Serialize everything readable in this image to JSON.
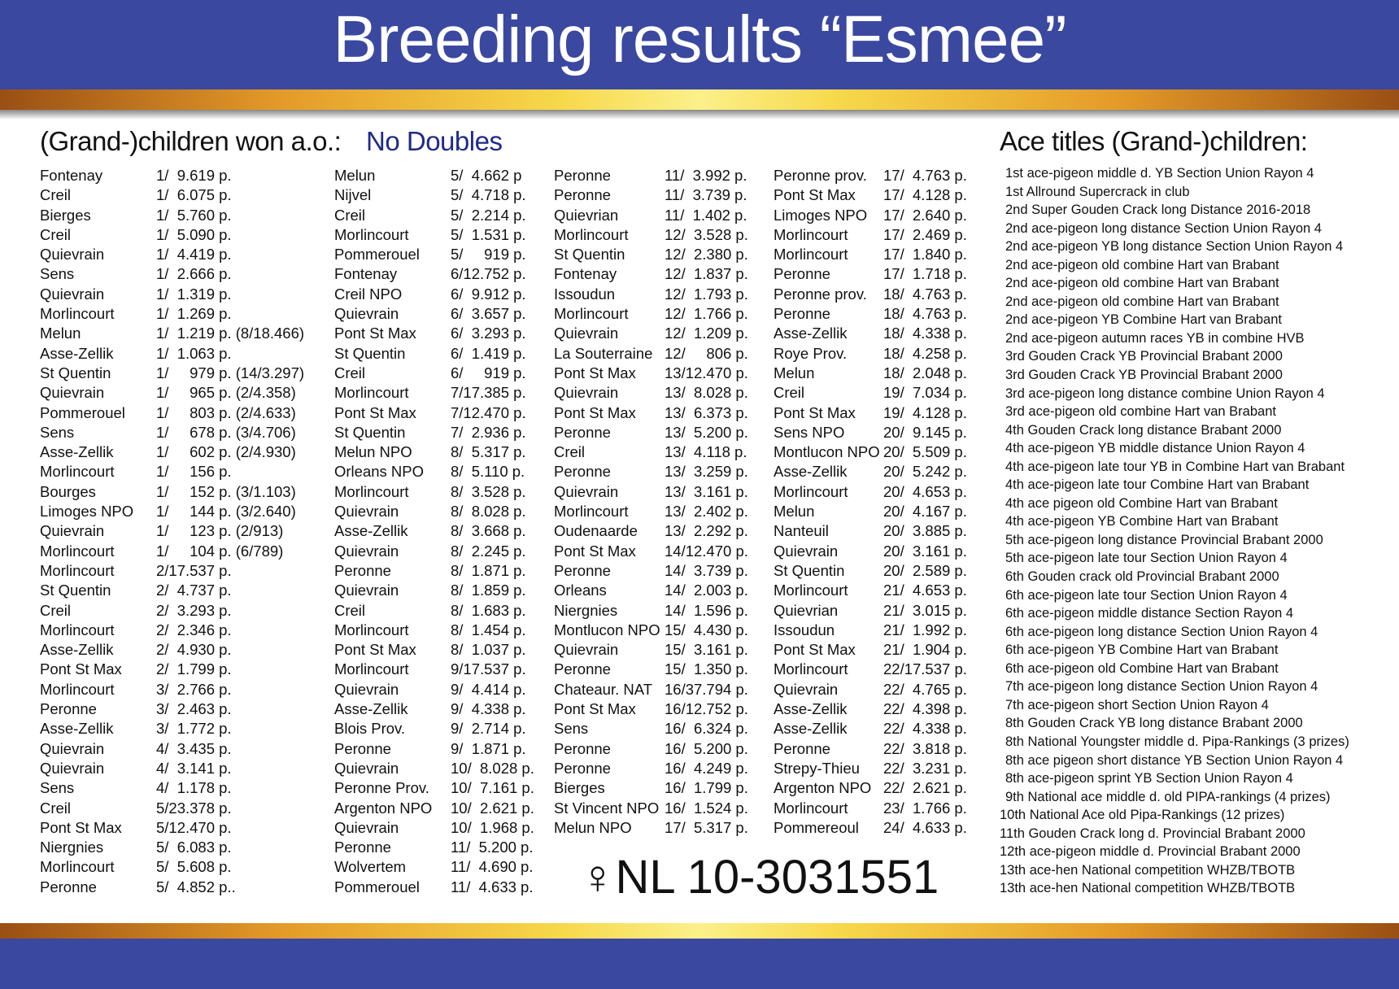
{
  "title": "Breeding results “Esmee”",
  "left_heading": "(Grand-)children won a.o.:",
  "no_doubles": "No Doubles",
  "right_heading": "Ace titles (Grand-)children:",
  "pigeon_id": "♀NL 10-3031551",
  "colors": {
    "blue": "#3a48a0",
    "gold": "#f7d84a",
    "accent_text": "#1f2a8a"
  },
  "results": [
    [
      [
        "Fontenay",
        "1/  9.619 p."
      ],
      [
        "Creil",
        "1/  6.075 p."
      ],
      [
        "Bierges",
        "1/  5.760 p."
      ],
      [
        "Creil",
        "1/  5.090 p."
      ],
      [
        "Quievrain",
        "1/  4.419 p."
      ],
      [
        "Sens",
        "1/  2.666 p."
      ],
      [
        "Quievrain",
        "1/  1.319 p."
      ],
      [
        "Morlincourt",
        "1/  1.269 p."
      ],
      [
        "Melun",
        "1/  1.219 p. (8/18.466)"
      ],
      [
        "Asse-Zellik",
        "1/  1.063 p."
      ],
      [
        "St Quentin",
        "1/     979 p. (14/3.297)"
      ],
      [
        "Quievrain",
        "1/     965 p. (2/4.358)"
      ],
      [
        "Pommerouel",
        "1/     803 p. (2/4.633)"
      ],
      [
        "Sens",
        "1/     678 p. (3/4.706)"
      ],
      [
        "Asse-Zellik",
        "1/     602 p. (2/4.930)"
      ],
      [
        "Morlincourt",
        "1/     156 p."
      ],
      [
        "Bourges",
        "1/     152 p. (3/1.103)"
      ],
      [
        "Limoges NPO",
        "1/     144 p. (3/2.640)"
      ],
      [
        "Quievrain",
        "1/     123 p. (2/913)"
      ],
      [
        "Morlincourt",
        "1/     104 p. (6/789)"
      ],
      [
        "Morlincourt",
        "2/17.537 p."
      ],
      [
        "St Quentin",
        "2/  4.737 p."
      ],
      [
        "Creil",
        "2/  3.293 p."
      ],
      [
        "Morlincourt",
        "2/  2.346 p."
      ],
      [
        "Asse-Zellik",
        "2/  4.930 p."
      ],
      [
        "Pont St Max",
        "2/  1.799 p."
      ],
      [
        "Morlincourt",
        "3/  2.766 p."
      ],
      [
        "Peronne",
        "3/  2.463 p."
      ],
      [
        "Asse-Zellik",
        "3/  1.772 p."
      ],
      [
        "Quievrain",
        "4/  3.435 p."
      ],
      [
        "Quievrain",
        "4/  3.141 p."
      ],
      [
        "Sens",
        "4/  1.178 p."
      ],
      [
        "Creil",
        "5/23.378 p."
      ],
      [
        "Pont St Max",
        "5/12.470 p."
      ],
      [
        "Niergnies",
        "5/  6.083 p."
      ],
      [
        "Morlincourt",
        "5/  5.608 p."
      ],
      [
        "Peronne",
        "5/  4.852 p.."
      ]
    ],
    [
      [
        "Melun",
        "5/  4.662 p"
      ],
      [
        "Nijvel",
        "5/  4.718 p."
      ],
      [
        "Creil",
        "5/  2.214 p."
      ],
      [
        "Morlincourt",
        "5/  1.531 p."
      ],
      [
        "Pommerouel",
        "5/     919 p."
      ],
      [
        "Fontenay",
        "6/12.752 p."
      ],
      [
        "Creil NPO",
        "6/  9.912 p."
      ],
      [
        "Quievrain",
        "6/  3.657 p."
      ],
      [
        "Pont St Max",
        "6/  3.293 p."
      ],
      [
        "St Quentin",
        "6/  1.419 p."
      ],
      [
        "Creil",
        "6/     919 p."
      ],
      [
        "Morlincourt",
        "7/17.385 p."
      ],
      [
        "Pont St Max",
        "7/12.470 p."
      ],
      [
        "St Quentin",
        "7/  2.936 p."
      ],
      [
        "Melun NPO",
        "8/  5.317 p."
      ],
      [
        "Orleans NPO",
        "8/  5.110 p."
      ],
      [
        "Morlincourt",
        "8/  3.528 p."
      ],
      [
        "Quievrain",
        "8/  8.028 p."
      ],
      [
        "Asse-Zellik",
        "8/  3.668 p."
      ],
      [
        "Quievrain",
        "8/  2.245 p."
      ],
      [
        "Peronne",
        "8/  1.871 p."
      ],
      [
        "Quievrain",
        "8/  1.859 p."
      ],
      [
        "Creil",
        "8/  1.683 p."
      ],
      [
        "Morlincourt",
        "8/  1.454 p."
      ],
      [
        "Pont St Max",
        "8/  1.037 p."
      ],
      [
        "Morlincourt",
        "9/17.537 p."
      ],
      [
        "Quievrain",
        "9/  4.414 p."
      ],
      [
        "Asse-Zellik",
        "9/  4.338 p."
      ],
      [
        "Blois Prov.",
        "9/  2.714 p."
      ],
      [
        "Peronne",
        "9/  1.871 p."
      ],
      [
        "Quievrain",
        "10/  8.028 p."
      ],
      [
        "Peronne Prov.",
        "10/  7.161 p."
      ],
      [
        "Argenton NPO",
        "10/  2.621 p."
      ],
      [
        "Quievrain",
        "10/  1.968 p."
      ],
      [
        "Peronne",
        "11/  5.200 p."
      ],
      [
        "Wolvertem",
        "11/  4.690 p."
      ],
      [
        "Pommerouel",
        "11/  4.633 p."
      ]
    ],
    [
      [
        "Peronne",
        "11/  3.992 p."
      ],
      [
        "Peronne",
        "11/  3.739 p."
      ],
      [
        "Quievrian",
        "11/  1.402 p."
      ],
      [
        "Morlincourt",
        "12/  3.528 p."
      ],
      [
        "St Quentin",
        "12/  2.380 p."
      ],
      [
        "Fontenay",
        "12/  1.837 p."
      ],
      [
        "Issoudun",
        "12/  1.793 p."
      ],
      [
        "Morlincourt",
        "12/  1.766 p."
      ],
      [
        "Quievrain",
        "12/  1.209 p."
      ],
      [
        "La Souterraine",
        "12/     806 p."
      ],
      [
        "Pont St Max",
        "13/12.470 p."
      ],
      [
        "Quievrain",
        "13/  8.028 p."
      ],
      [
        "Pont St Max",
        "13/  6.373 p."
      ],
      [
        "Peronne",
        "13/  5.200 p."
      ],
      [
        "Creil",
        "13/  4.118 p."
      ],
      [
        "Peronne",
        "13/  3.259 p."
      ],
      [
        "Quievrain",
        "13/  3.161 p."
      ],
      [
        "Morlincourt",
        "13/  2.402 p."
      ],
      [
        "Oudenaarde",
        "13/  2.292 p."
      ],
      [
        "Pont St Max",
        "14/12.470 p."
      ],
      [
        "Peronne",
        "14/  3.739 p."
      ],
      [
        "Orleans",
        "14/  2.003 p."
      ],
      [
        "Niergnies",
        "14/  1.596 p."
      ],
      [
        "Montlucon NPO",
        "15/  4.430 p."
      ],
      [
        "Quievrain",
        "15/  3.161 p."
      ],
      [
        "Peronne",
        "15/  1.350 p."
      ],
      [
        "Chateaur. NAT",
        "16/37.794 p."
      ],
      [
        "Pont St Max",
        "16/12.752 p."
      ],
      [
        "Sens",
        "16/  6.324 p."
      ],
      [
        "Peronne",
        "16/  5.200 p."
      ],
      [
        "Peronne",
        "16/  4.249 p."
      ],
      [
        "Bierges",
        "16/  1.799 p."
      ],
      [
        "St Vincent NPO",
        "16/  1.524 p."
      ],
      [
        "Melun NPO",
        "17/  5.317 p."
      ]
    ],
    [
      [
        "Peronne prov.",
        "17/  4.763 p."
      ],
      [
        "Pont St Max",
        "17/  4.128 p."
      ],
      [
        "Limoges NPO",
        "17/  2.640 p."
      ],
      [
        "Morlincourt",
        "17/  2.469 p."
      ],
      [
        "Morlincourt",
        "17/  1.840 p."
      ],
      [
        "Peronne",
        "17/  1.718 p."
      ],
      [
        "Peronne prov.",
        "18/  4.763 p."
      ],
      [
        "Peronne",
        "18/  4.763 p."
      ],
      [
        "Asse-Zellik",
        "18/  4.338 p."
      ],
      [
        "Roye Prov.",
        "18/  4.258 p."
      ],
      [
        "Melun",
        "18/  2.048 p."
      ],
      [
        "Creil",
        "19/  7.034 p."
      ],
      [
        "Pont St Max",
        "19/  4.128 p."
      ],
      [
        "Sens NPO",
        "20/  9.145 p."
      ],
      [
        "Montlucon NPO",
        "20/  5.509 p."
      ],
      [
        "Asse-Zellik",
        "20/  5.242 p."
      ],
      [
        "Morlincourt",
        "20/  4.653 p."
      ],
      [
        "Melun",
        "20/  4.167 p."
      ],
      [
        "Nanteuil",
        "20/  3.885 p."
      ],
      [
        "Quievrain",
        "20/  3.161 p."
      ],
      [
        "St Quentin",
        "20/  2.589 p."
      ],
      [
        "Morlincourt",
        "21/  4.653 p."
      ],
      [
        "Quievrian",
        "21/  3.015 p."
      ],
      [
        "Issoudun",
        "21/  1.992 p."
      ],
      [
        "Pont St Max",
        "21/  1.904 p."
      ],
      [
        "Morlincourt",
        "22/17.537 p."
      ],
      [
        "Quievrain",
        "22/  4.765 p."
      ],
      [
        "Asse-Zellik",
        "22/  4.398 p."
      ],
      [
        "Asse-Zellik",
        "22/  4.338 p."
      ],
      [
        "Peronne",
        "22/  3.818 p."
      ],
      [
        "Strepy-Thieu",
        "22/  3.231 p."
      ],
      [
        "Argenton NPO",
        "22/  2.621 p."
      ],
      [
        "Morlincourt",
        "23/  1.766 p."
      ],
      [
        "Pommereoul",
        "24/  4.633 p."
      ]
    ]
  ],
  "ace_titles": [
    "1st ace-pigeon middle d. YB Section Union Rayon 4",
    "1st Allround Supercrack in club",
    "2nd Super Gouden Crack long Distance 2016-2018",
    "2nd ace-pigeon long distance Section Union Rayon 4",
    "2nd ace-pigeon YB long distance Section Union Rayon 4",
    "2nd ace-pigeon old combine Hart van Brabant",
    "2nd ace-pigeon old combine Hart van Brabant",
    "2nd ace-pigeon old combine Hart van Brabant",
    "2nd ace-pigeon YB Combine Hart van Brabant",
    "2nd ace-pigeon autumn races YB in combine HVB",
    "3rd Gouden Crack YB Provincial Brabant 2000",
    "3rd Gouden Crack YB Provincial Brabant 2000",
    "3rd ace-pigeon long distance combine Union Rayon 4",
    "3rd ace-pigeon old combine Hart van Brabant",
    "4th Gouden Crack long distance Brabant 2000",
    "4th ace-pigeon YB middle distance Union Rayon 4",
    "4th ace-pigeon late tour YB in Combine Hart van Brabant",
    "4th ace-pigeon late tour Combine Hart van Brabant",
    "4th ace pigeon old Combine Hart van Brabant",
    "4th ace-pigeon YB Combine Hart van Brabant",
    "5th ace-pigeon long distance Provincial Brabant 2000",
    "5th ace-pigeon late tour Section Union Rayon 4",
    "6th Gouden crack old Provincial Brabant 2000",
    "6th ace-pigeon late tour Section Union Rayon 4",
    "6th ace-pigeon middle distance Section Rayon 4",
    "6th ace-pigeon long distance Section Union Rayon 4",
    "6th ace-pigeon YB Combine Hart van Brabant",
    "6th ace-pigeon old Combine Hart van Brabant",
    "7th ace-pigeon long distance Section Union Rayon 4",
    "7th ace-pigeon short Section Union Rayon 4",
    "8th Gouden Crack YB long distance Brabant 2000",
    "8th National Youngster middle d. Pipa-Rankings (3 prizes)",
    "8th ace pigeon short distance YB Section Union Rayon 4",
    "8th ace-pigeon sprint YB Section Union Rayon 4",
    "9th National ace middle d. old PIPA-rankings (4 prizes)",
    "10th National Ace old Pipa-Rankings (12 prizes)",
    "11th Gouden Crack long d. Provincial Brabant 2000",
    "12th ace-pigeon middle d. Provincial Brabant 2000",
    "13th ace-hen National competition WHZB/TBOTB",
    "13th ace-hen National competition WHZB/TBOTB"
  ]
}
